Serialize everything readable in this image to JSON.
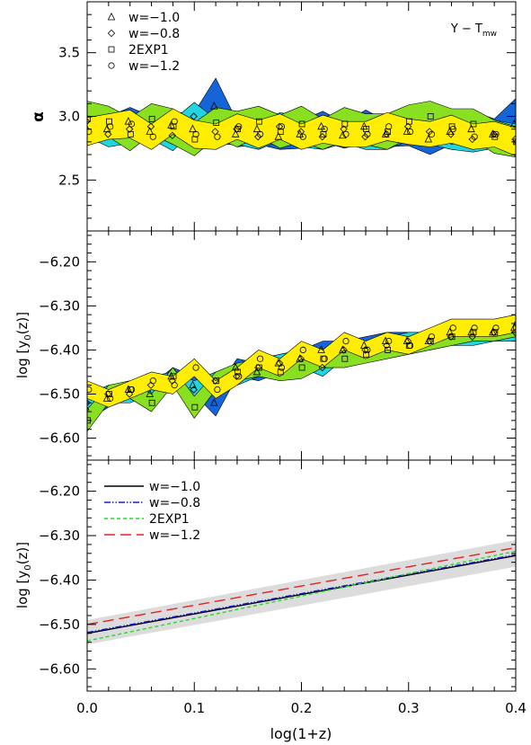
{
  "figure": {
    "xlabel": "log(1+z)",
    "x_ticks": [
      0.0,
      0.1,
      0.2,
      0.3,
      0.4
    ],
    "x_tick_labels": [
      "0.0",
      "0.1",
      "0.2",
      "0.3",
      "0.4"
    ]
  },
  "chart_data": [
    {
      "type": "area",
      "panel": "alpha",
      "ylabel": "α",
      "annotation": "Y − T",
      "annotation_sub": "mw",
      "xlim": [
        0.0,
        0.4
      ],
      "ylim": [
        2.1,
        3.9
      ],
      "y_ticks": [
        2.5,
        3.0,
        3.5
      ],
      "y_tick_labels": [
        "2.5",
        "3.0",
        "3.5"
      ],
      "legend": {
        "position": "top-left",
        "entries": [
          {
            "label": "w=−1.0",
            "marker": "triangle"
          },
          {
            "label": "w=−0.8",
            "marker": "diamond"
          },
          {
            "label": "2EXP1",
            "marker": "square"
          },
          {
            "label": "w=−1.2",
            "marker": "circle"
          }
        ]
      },
      "x": [
        0.0,
        0.02,
        0.04,
        0.06,
        0.08,
        0.1,
        0.12,
        0.14,
        0.16,
        0.18,
        0.2,
        0.22,
        0.24,
        0.26,
        0.28,
        0.3,
        0.32,
        0.34,
        0.36,
        0.38,
        0.4
      ],
      "series": [
        {
          "marker": "triangle",
          "color": "#1565d8",
          "values": [
            2.92,
            2.9,
            2.96,
            2.88,
            2.93,
            2.9,
            3.08,
            2.86,
            2.9,
            2.84,
            2.86,
            2.92,
            2.85,
            2.92,
            2.86,
            2.88,
            2.82,
            2.88,
            2.9,
            2.86,
            2.94
          ],
          "band": [
            0.13,
            0.1,
            0.11,
            0.12,
            0.1,
            0.13,
            0.22,
            0.1,
            0.12,
            0.1,
            0.11,
            0.12,
            0.1,
            0.13,
            0.1,
            0.11,
            0.12,
            0.1,
            0.14,
            0.12,
            0.2
          ]
        },
        {
          "marker": "diamond",
          "color": "#22d4e0",
          "values": [
            2.96,
            2.86,
            2.9,
            2.92,
            2.85,
            3.0,
            2.88,
            2.9,
            2.84,
            2.92,
            2.88,
            2.84,
            2.9,
            2.84,
            2.86,
            2.92,
            2.88,
            2.86,
            2.82,
            2.86,
            2.82
          ],
          "band": [
            0.12,
            0.1,
            0.11,
            0.1,
            0.12,
            0.11,
            0.1,
            0.12,
            0.1,
            0.11,
            0.12,
            0.1,
            0.11,
            0.1,
            0.12,
            0.11,
            0.1,
            0.12,
            0.1,
            0.11,
            0.12
          ]
        },
        {
          "marker": "square",
          "color": "#88e020",
          "values": [
            2.98,
            2.96,
            2.86,
            2.98,
            2.92,
            2.82,
            2.95,
            2.9,
            2.96,
            2.88,
            2.94,
            2.86,
            2.94,
            2.9,
            2.88,
            2.96,
            3.0,
            2.92,
            2.94,
            2.84,
            2.8
          ],
          "band": [
            0.14,
            0.12,
            0.13,
            0.12,
            0.14,
            0.13,
            0.12,
            0.14,
            0.12,
            0.13,
            0.14,
            0.12,
            0.13,
            0.12,
            0.14,
            0.13,
            0.12,
            0.14,
            0.12,
            0.13,
            0.12
          ]
        },
        {
          "marker": "circle",
          "color": "#ffee00",
          "values": [
            2.88,
            2.92,
            2.94,
            2.84,
            2.96,
            2.86,
            2.84,
            2.92,
            2.86,
            2.92,
            2.84,
            2.9,
            2.86,
            2.86,
            2.92,
            2.88,
            2.86,
            2.9,
            2.84,
            2.86,
            2.8
          ],
          "band": [
            0.11,
            0.1,
            0.11,
            0.1,
            0.1,
            0.11,
            0.1,
            0.1,
            0.11,
            0.1,
            0.1,
            0.11,
            0.1,
            0.1,
            0.11,
            0.1,
            0.1,
            0.11,
            0.1,
            0.1,
            0.11
          ]
        }
      ]
    },
    {
      "type": "area",
      "panel": "y0",
      "ylabel": "log [y",
      "ylabel_sub": "0",
      "ylabel_tail": "(z)]",
      "xlim": [
        0.0,
        0.4
      ],
      "ylim": [
        -6.65,
        -6.13
      ],
      "y_ticks": [
        -6.6,
        -6.5,
        -6.4,
        -6.3,
        -6.2
      ],
      "y_tick_labels": [
        "−6.60",
        "−6.50",
        "−6.40",
        "−6.30",
        "−6.20"
      ],
      "x": [
        0.0,
        0.02,
        0.04,
        0.06,
        0.08,
        0.1,
        0.12,
        0.14,
        0.16,
        0.18,
        0.2,
        0.22,
        0.24,
        0.26,
        0.28,
        0.3,
        0.32,
        0.34,
        0.36,
        0.38,
        0.4
      ],
      "series": [
        {
          "marker": "triangle",
          "color": "#1565d8",
          "values": [
            -6.53,
            -6.51,
            -6.49,
            -6.5,
            -6.46,
            -6.48,
            -6.52,
            -6.44,
            -6.45,
            -6.43,
            -6.42,
            -6.4,
            -6.4,
            -6.39,
            -6.38,
            -6.38,
            -6.38,
            -6.36,
            -6.36,
            -6.36,
            -6.35
          ],
          "band": [
            0.03,
            0.02,
            0.02,
            0.02,
            0.02,
            0.02,
            0.03,
            0.02,
            0.02,
            0.02,
            0.02,
            0.02,
            0.02,
            0.02,
            0.02,
            0.02,
            0.02,
            0.02,
            0.02,
            0.02,
            0.02
          ]
        },
        {
          "marker": "diamond",
          "color": "#22d4e0",
          "values": [
            -6.52,
            -6.5,
            -6.5,
            -6.48,
            -6.47,
            -6.49,
            -6.47,
            -6.46,
            -6.44,
            -6.43,
            -6.42,
            -6.44,
            -6.4,
            -6.4,
            -6.39,
            -6.38,
            -6.38,
            -6.37,
            -6.37,
            -6.36,
            -6.36
          ],
          "band": [
            0.02,
            0.02,
            0.02,
            0.02,
            0.02,
            0.02,
            0.02,
            0.02,
            0.02,
            0.02,
            0.02,
            0.02,
            0.02,
            0.02,
            0.02,
            0.02,
            0.02,
            0.02,
            0.02,
            0.02,
            0.02
          ]
        },
        {
          "marker": "square",
          "color": "#88e020",
          "values": [
            -6.56,
            -6.5,
            -6.49,
            -6.52,
            -6.46,
            -6.53,
            -6.47,
            -6.45,
            -6.44,
            -6.45,
            -6.44,
            -6.42,
            -6.42,
            -6.41,
            -6.4,
            -6.39,
            -6.38,
            -6.37,
            -6.36,
            -6.36,
            -6.35
          ],
          "band": [
            0.025,
            0.02,
            0.02,
            0.02,
            0.02,
            0.025,
            0.02,
            0.02,
            0.02,
            0.02,
            0.025,
            0.02,
            0.02,
            0.02,
            0.02,
            0.02,
            0.02,
            0.02,
            0.02,
            0.02,
            0.02
          ]
        },
        {
          "marker": "circle",
          "color": "#ffee00",
          "values": [
            -6.49,
            -6.51,
            -6.49,
            -6.47,
            -6.48,
            -6.44,
            -6.49,
            -6.46,
            -6.42,
            -6.44,
            -6.4,
            -6.42,
            -6.38,
            -6.4,
            -6.38,
            -6.39,
            -6.37,
            -6.35,
            -6.35,
            -6.35,
            -6.34
          ],
          "band": [
            0.02,
            0.02,
            0.02,
            0.02,
            0.02,
            0.02,
            0.02,
            0.02,
            0.02,
            0.02,
            0.02,
            0.02,
            0.02,
            0.02,
            0.02,
            0.02,
            0.02,
            0.02,
            0.02,
            0.02,
            0.02
          ]
        }
      ]
    },
    {
      "type": "line",
      "panel": "fit",
      "ylabel": "log [y",
      "ylabel_sub": "0",
      "ylabel_tail": "(z)]",
      "xlim": [
        0.0,
        0.4
      ],
      "ylim": [
        -6.65,
        -6.13
      ],
      "y_ticks": [
        -6.6,
        -6.5,
        -6.4,
        -6.3,
        -6.2
      ],
      "y_tick_labels": [
        "−6.60",
        "−6.50",
        "−6.40",
        "−6.30",
        "−6.20"
      ],
      "legend": {
        "position": "top-left",
        "entries": [
          "w=−1.0",
          "w=−0.8",
          "2EXP1",
          "w=−1.2"
        ]
      },
      "shaded_band": {
        "x": [
          0.0,
          0.4
        ],
        "lower": [
          -6.545,
          -6.37
        ],
        "upper": [
          -6.49,
          -6.31
        ],
        "color": "#dcdcdc"
      },
      "series": [
        {
          "name": "w=−1.0",
          "color": "#000000",
          "dash": "solid",
          "x": [
            0.0,
            0.4
          ],
          "values": [
            -6.52,
            -6.345
          ]
        },
        {
          "name": "w=−0.8",
          "color": "#1a1ad6",
          "dash": "dashdotdot",
          "x": [
            0.0,
            0.4
          ],
          "values": [
            -6.518,
            -6.343
          ]
        },
        {
          "name": "2EXP1",
          "color": "#22dd22",
          "dash": "short",
          "x": [
            0.0,
            0.4
          ],
          "values": [
            -6.537,
            -6.335
          ]
        },
        {
          "name": "w=−1.2",
          "color": "#e82020",
          "dash": "long",
          "x": [
            0.0,
            0.4
          ],
          "values": [
            -6.5,
            -6.327
          ]
        }
      ]
    }
  ]
}
